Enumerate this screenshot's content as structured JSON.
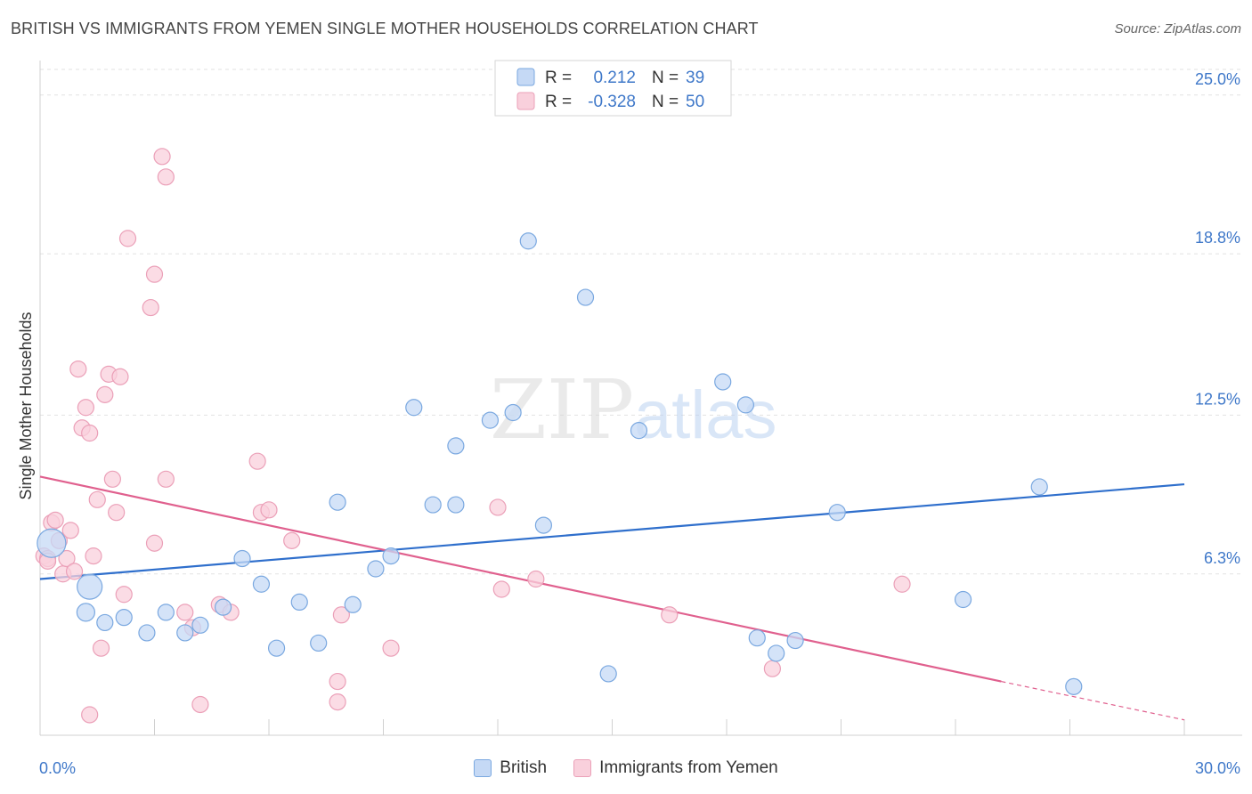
{
  "header": {
    "title": "BRITISH VS IMMIGRANTS FROM YEMEN SINGLE MOTHER HOUSEHOLDS CORRELATION CHART",
    "source": "Source: ZipAtlas.com"
  },
  "colors": {
    "blue_fill": "#c5d9f5",
    "blue_stroke": "#7aa8e0",
    "blue_line": "#2f6fcc",
    "pink_fill": "#f9d0dc",
    "pink_stroke": "#eba0b8",
    "pink_line": "#e0608e",
    "tick_text": "#3f78c9",
    "grid": "#e2e2e2"
  },
  "chart_data": {
    "type": "scatter",
    "title": "BRITISH VS IMMIGRANTS FROM YEMEN SINGLE MOTHER HOUSEHOLDS CORRELATION CHART",
    "xlabel": "",
    "ylabel": "Single Mother Households",
    "xlim": [
      0,
      30
    ],
    "ylim": [
      0,
      26
    ],
    "x_tick_labels": [
      {
        "value": 0,
        "label": "0.0%"
      },
      {
        "value": 30,
        "label": "30.0%"
      }
    ],
    "y_tick_labels": [
      {
        "value": 6.3,
        "label": "6.3%"
      },
      {
        "value": 12.5,
        "label": "12.5%"
      },
      {
        "value": 18.8,
        "label": "18.8%"
      },
      {
        "value": 25.0,
        "label": "25.0%"
      }
    ],
    "legend_top": [
      {
        "series": "British",
        "r_label": "R =",
        "r": "0.212",
        "n_label": "N =",
        "n": "39"
      },
      {
        "series": "Immigrants from Yemen",
        "r_label": "R =",
        "r": "-0.328",
        "n_label": "N =",
        "n": "50"
      }
    ],
    "watermark": {
      "part1": "ZIP",
      "part2": "atlas"
    },
    "series": [
      {
        "name": "British",
        "color": "#7aa8e0",
        "points": [
          [
            0.3,
            7.5,
            16
          ],
          [
            1.3,
            5.8,
            14
          ],
          [
            1.2,
            4.8,
            10
          ],
          [
            1.7,
            4.4,
            9
          ],
          [
            2.2,
            4.6,
            9
          ],
          [
            2.8,
            4.0,
            9
          ],
          [
            3.3,
            4.8,
            9
          ],
          [
            3.8,
            4.0,
            9
          ],
          [
            4.2,
            4.3,
            9
          ],
          [
            4.8,
            5.0,
            9
          ],
          [
            5.3,
            6.9,
            9
          ],
          [
            5.8,
            5.9,
            9
          ],
          [
            6.2,
            3.4,
            9
          ],
          [
            6.8,
            5.2,
            9
          ],
          [
            7.3,
            3.6,
            9
          ],
          [
            7.8,
            9.1,
            9
          ],
          [
            8.2,
            5.1,
            9
          ],
          [
            8.8,
            6.5,
            9
          ],
          [
            9.2,
            7.0,
            9
          ],
          [
            9.8,
            12.8,
            9
          ],
          [
            10.3,
            9.0,
            9
          ],
          [
            10.9,
            11.3,
            9
          ],
          [
            10.9,
            9.0,
            9
          ],
          [
            11.8,
            12.3,
            9
          ],
          [
            12.4,
            12.6,
            9
          ],
          [
            12.8,
            19.3,
            9
          ],
          [
            13.2,
            8.2,
            9
          ],
          [
            14.3,
            17.1,
            9
          ],
          [
            14.9,
            2.4,
            9
          ],
          [
            15.7,
            11.9,
            9
          ],
          [
            17.9,
            13.8,
            9
          ],
          [
            18.5,
            12.9,
            9
          ],
          [
            18.8,
            3.8,
            9
          ],
          [
            19.3,
            3.2,
            9
          ],
          [
            19.8,
            3.7,
            9
          ],
          [
            20.9,
            8.7,
            9
          ],
          [
            24.2,
            5.3,
            9
          ],
          [
            26.2,
            9.7,
            9
          ],
          [
            27.1,
            1.9,
            9
          ]
        ],
        "trend": {
          "x1": 0,
          "y1": 6.1,
          "x2": 30,
          "y2": 9.8
        }
      },
      {
        "name": "Immigrants from Yemen",
        "color": "#eba0b8",
        "points": [
          [
            0.1,
            7.0,
            9
          ],
          [
            0.2,
            6.9,
            9
          ],
          [
            0.3,
            8.3,
            9
          ],
          [
            0.4,
            8.4,
            9
          ],
          [
            0.5,
            7.6,
            9
          ],
          [
            0.6,
            6.3,
            9
          ],
          [
            0.7,
            6.9,
            9
          ],
          [
            0.8,
            8.0,
            9
          ],
          [
            0.9,
            6.4,
            9
          ],
          [
            1.0,
            14.3,
            9
          ],
          [
            1.1,
            12.0,
            9
          ],
          [
            1.2,
            12.8,
            9
          ],
          [
            1.3,
            11.8,
            9
          ],
          [
            1.4,
            7.0,
            9
          ],
          [
            1.5,
            9.2,
            9
          ],
          [
            1.6,
            3.4,
            9
          ],
          [
            1.7,
            13.3,
            9
          ],
          [
            1.8,
            14.1,
            9
          ],
          [
            1.9,
            10.0,
            9
          ],
          [
            2.0,
            8.7,
            9
          ],
          [
            2.1,
            14.0,
            9
          ],
          [
            2.2,
            5.5,
            9
          ],
          [
            2.3,
            19.4,
            9
          ],
          [
            2.9,
            16.7,
            9
          ],
          [
            3.0,
            7.5,
            9
          ],
          [
            3.0,
            18.0,
            9
          ],
          [
            3.2,
            22.6,
            9
          ],
          [
            3.3,
            21.8,
            9
          ],
          [
            3.3,
            10.0,
            9
          ],
          [
            3.8,
            4.8,
            9
          ],
          [
            4.0,
            4.2,
            9
          ],
          [
            4.2,
            1.2,
            9
          ],
          [
            4.7,
            5.1,
            9
          ],
          [
            5.0,
            4.8,
            9
          ],
          [
            5.7,
            10.7,
            9
          ],
          [
            5.8,
            8.7,
            9
          ],
          [
            6.0,
            8.8,
            9
          ],
          [
            6.6,
            7.6,
            9
          ],
          [
            7.8,
            1.3,
            9
          ],
          [
            7.8,
            2.1,
            9
          ],
          [
            7.9,
            4.7,
            9
          ],
          [
            9.2,
            3.4,
            9
          ],
          [
            12.0,
            8.9,
            9
          ],
          [
            12.1,
            5.7,
            9
          ],
          [
            13.0,
            6.1,
            9
          ],
          [
            16.5,
            4.7,
            9
          ],
          [
            19.2,
            2.6,
            9
          ],
          [
            22.6,
            5.9,
            9
          ],
          [
            1.3,
            0.8,
            9
          ],
          [
            0.2,
            6.8,
            9
          ]
        ],
        "trend": {
          "x1": 0,
          "y1": 10.1,
          "x2": 25.2,
          "y2": 2.1
        },
        "trend_dashed": {
          "x1": 25.2,
          "y1": 2.1,
          "x2": 30,
          "y2": 0.6
        }
      }
    ]
  }
}
